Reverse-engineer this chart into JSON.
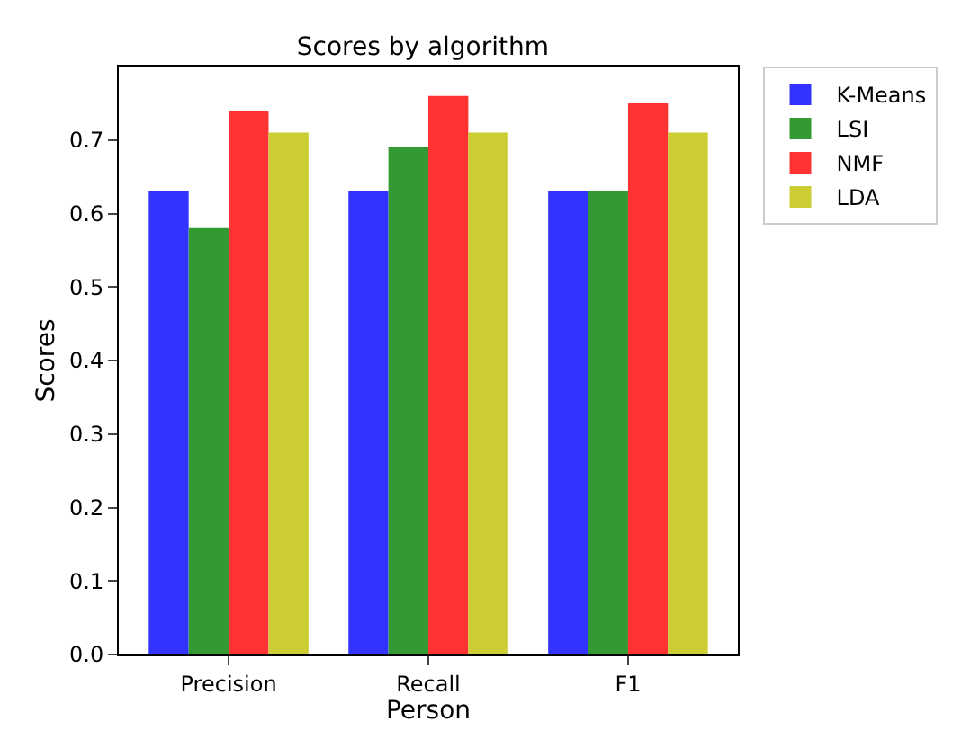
{
  "chart_data": {
    "type": "bar",
    "title": "Scores by algorithm",
    "xlabel": "Person",
    "ylabel": "Scores",
    "categories": [
      "Precision",
      "Recall",
      "F1"
    ],
    "series": [
      {
        "name": "K-Means",
        "color": "#3333ff",
        "values": [
          0.63,
          0.63,
          0.63
        ]
      },
      {
        "name": "LSI",
        "color": "#339933",
        "values": [
          0.58,
          0.69,
          0.63
        ]
      },
      {
        "name": "NMF",
        "color": "#ff3333",
        "values": [
          0.74,
          0.76,
          0.75
        ]
      },
      {
        "name": "LDA",
        "color": "#cccc33",
        "values": [
          0.71,
          0.71,
          0.71
        ]
      }
    ],
    "ylim": [
      0,
      0.8
    ],
    "yticks": [
      {
        "value": 0,
        "label": "0.0"
      },
      0.1,
      0.2,
      0.3,
      0.4,
      0.5,
      0.6,
      0.7
    ],
    "legend": "top right"
  }
}
